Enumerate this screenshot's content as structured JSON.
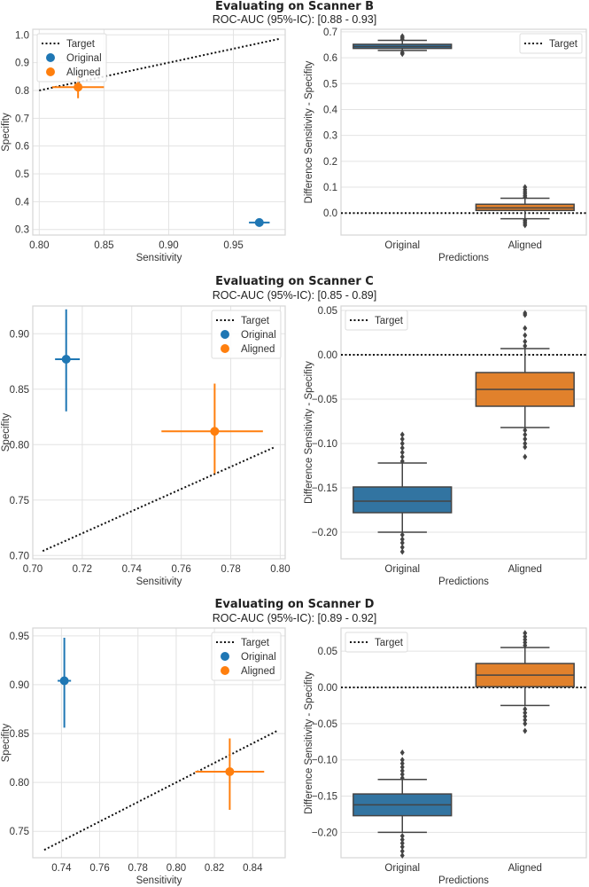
{
  "rows": [
    {
      "title": "Evaluating on Scanner B",
      "subtitle": "ROC-AUC (95%-IC): [0.88 - 0.93]"
    },
    {
      "title": "Evaluating on Scanner C",
      "subtitle": "ROC-AUC (95%-IC): [0.85 - 0.89]"
    },
    {
      "title": "Evaluating on Scanner D",
      "subtitle": "ROC-AUC (95%-IC): [0.89 - 0.92]"
    }
  ],
  "colors": {
    "original": "#1f77b4",
    "aligned": "#ff7f0e",
    "original_box": "#3274a1",
    "aligned_box": "#e1812c",
    "target": "#111111"
  },
  "chart_data": [
    {
      "type": "scatter",
      "scanner": "B",
      "xlabel": "Sensitivity",
      "ylabel": "Specifity",
      "xlim": [
        0.795,
        0.99
      ],
      "ylim": [
        0.28,
        1.02
      ],
      "xticks": [
        0.8,
        0.85,
        0.9,
        0.95
      ],
      "xtick_labels": [
        "0.80",
        "0.85",
        "0.90",
        "0.95"
      ],
      "yticks": [
        0.3,
        0.4,
        0.5,
        0.6,
        0.7,
        0.8,
        0.9,
        1.0
      ],
      "ytick_labels": [
        "0.3",
        "0.4",
        "0.5",
        "0.6",
        "0.7",
        "0.8",
        "0.9",
        "1.0"
      ],
      "legend": {
        "position": "top-left",
        "entries": [
          "Target",
          "Original",
          "Aligned"
        ]
      },
      "target": [
        [
          0.8,
          0.8
        ],
        [
          0.985,
          0.985
        ]
      ],
      "points": [
        {
          "name": "Original",
          "x": 0.97,
          "y": 0.325,
          "xerr": [
            0.962,
            0.978
          ],
          "yerr": [
            0.31,
            0.34
          ]
        },
        {
          "name": "Aligned",
          "x": 0.83,
          "y": 0.812,
          "xerr": [
            0.81,
            0.85
          ],
          "yerr": [
            0.772,
            0.85
          ]
        }
      ]
    },
    {
      "type": "box",
      "scanner": "B",
      "xlabel": "Predictions",
      "ylabel": "Difference Sensitivity - Specifity",
      "ylim": [
        -0.085,
        0.71
      ],
      "yticks": [
        0.0,
        0.1,
        0.2,
        0.3,
        0.4,
        0.5,
        0.6,
        0.7
      ],
      "ytick_labels": [
        "0.0",
        "0.1",
        "0.2",
        "0.3",
        "0.4",
        "0.5",
        "0.6",
        "0.7"
      ],
      "categories": [
        "Original",
        "Aligned"
      ],
      "target_y": 0.0,
      "legend": {
        "position": "top-right",
        "entries": [
          "Target"
        ]
      },
      "boxes": [
        {
          "name": "Original",
          "q1": 0.636,
          "median": 0.643,
          "q3": 0.652,
          "whislo": 0.628,
          "whishi": 0.667,
          "fliers": [
            0.62,
            0.615,
            0.672,
            0.678,
            0.683
          ]
        },
        {
          "name": "Aligned",
          "q1": 0.01,
          "median": 0.02,
          "q3": 0.034,
          "whislo": -0.022,
          "whishi": 0.057,
          "fliers": [
            0.062,
            0.068,
            0.075,
            0.082,
            0.09,
            0.1,
            -0.028,
            -0.034,
            -0.04,
            -0.047
          ]
        }
      ]
    },
    {
      "type": "scatter",
      "scanner": "C",
      "xlabel": "Sensitivity",
      "ylabel": "Specifity",
      "xlim": [
        0.7,
        0.802
      ],
      "ylim": [
        0.697,
        0.925
      ],
      "xticks": [
        0.7,
        0.72,
        0.74,
        0.76,
        0.78,
        0.8
      ],
      "xtick_labels": [
        "0.70",
        "0.72",
        "0.74",
        "0.76",
        "0.78",
        "0.80"
      ],
      "yticks": [
        0.7,
        0.75,
        0.8,
        0.85,
        0.9
      ],
      "ytick_labels": [
        "0.70",
        "0.75",
        "0.80",
        "0.85",
        "0.90"
      ],
      "legend": {
        "position": "top-right",
        "entries": [
          "Target",
          "Original",
          "Aligned"
        ]
      },
      "target": [
        [
          0.704,
          0.704
        ],
        [
          0.798,
          0.798
        ]
      ],
      "points": [
        {
          "name": "Original",
          "x": 0.7135,
          "y": 0.877,
          "xerr": [
            0.709,
            0.719
          ],
          "yerr": [
            0.83,
            0.922
          ]
        },
        {
          "name": "Aligned",
          "x": 0.7735,
          "y": 0.812,
          "xerr": [
            0.752,
            0.793
          ],
          "yerr": [
            0.774,
            0.855
          ]
        }
      ]
    },
    {
      "type": "box",
      "scanner": "C",
      "xlabel": "Predictions",
      "ylabel": "Difference Sensitivity - Specifity",
      "ylim": [
        -0.23,
        0.055
      ],
      "yticks": [
        0.05,
        0.0,
        -0.05,
        -0.1,
        -0.15,
        -0.2
      ],
      "ytick_labels": [
        "0.05",
        "0.00",
        "−0.05",
        "−0.10",
        "−0.15",
        "−0.20"
      ],
      "categories": [
        "Original",
        "Aligned"
      ],
      "target_y": 0.0,
      "legend": {
        "position": "top-left",
        "entries": [
          "Target"
        ]
      },
      "boxes": [
        {
          "name": "Original",
          "q1": -0.178,
          "median": -0.165,
          "q3": -0.149,
          "whislo": -0.2,
          "whishi": -0.122,
          "fliers": [
            -0.09,
            -0.095,
            -0.1,
            -0.105,
            -0.11,
            -0.115,
            -0.12,
            -0.203,
            -0.208,
            -0.212,
            -0.217,
            -0.222
          ]
        },
        {
          "name": "Aligned",
          "q1": -0.058,
          "median": -0.039,
          "q3": -0.02,
          "whislo": -0.082,
          "whishi": 0.007,
          "fliers": [
            0.01,
            0.015,
            0.022,
            0.03,
            0.045,
            0.047,
            -0.085,
            -0.09,
            -0.095,
            -0.1,
            -0.104,
            -0.115
          ]
        }
      ]
    },
    {
      "type": "scatter",
      "scanner": "D",
      "xlabel": "Sensitivity",
      "ylabel": "Specifity",
      "xlim": [
        0.725,
        0.857
      ],
      "ylim": [
        0.723,
        0.958
      ],
      "xticks": [
        0.74,
        0.76,
        0.78,
        0.8,
        0.82,
        0.84
      ],
      "xtick_labels": [
        "0.74",
        "0.76",
        "0.78",
        "0.80",
        "0.82",
        "0.84"
      ],
      "yticks": [
        0.75,
        0.8,
        0.85,
        0.9,
        0.95
      ],
      "ytick_labels": [
        "0.75",
        "0.80",
        "0.85",
        "0.90",
        "0.95"
      ],
      "legend": {
        "position": "top-right",
        "entries": [
          "Target",
          "Original",
          "Aligned"
        ]
      },
      "target": [
        [
          0.731,
          0.731
        ],
        [
          0.853,
          0.853
        ]
      ],
      "points": [
        {
          "name": "Original",
          "x": 0.7415,
          "y": 0.904,
          "xerr": [
            0.738,
            0.745
          ],
          "yerr": [
            0.856,
            0.948
          ]
        },
        {
          "name": "Aligned",
          "x": 0.828,
          "y": 0.811,
          "xerr": [
            0.81,
            0.846
          ],
          "yerr": [
            0.772,
            0.845
          ]
        }
      ]
    },
    {
      "type": "box",
      "scanner": "D",
      "xlabel": "Predictions",
      "ylabel": "Difference Sensitivity - Specifity",
      "ylim": [
        -0.235,
        0.082
      ],
      "yticks": [
        0.05,
        0.0,
        -0.05,
        -0.1,
        -0.15,
        -0.2
      ],
      "ytick_labels": [
        "0.05",
        "0.00",
        "−0.05",
        "−0.10",
        "−0.15",
        "−0.20"
      ],
      "categories": [
        "Original",
        "Aligned"
      ],
      "target_y": 0.0,
      "legend": {
        "position": "top-left",
        "entries": [
          "Target"
        ]
      },
      "boxes": [
        {
          "name": "Original",
          "q1": -0.177,
          "median": -0.162,
          "q3": -0.147,
          "whislo": -0.2,
          "whishi": -0.127,
          "fliers": [
            -0.09,
            -0.1,
            -0.105,
            -0.11,
            -0.115,
            -0.12,
            -0.125,
            -0.205,
            -0.21,
            -0.215,
            -0.22,
            -0.226,
            -0.232
          ]
        },
        {
          "name": "Aligned",
          "q1": 0.001,
          "median": 0.017,
          "q3": 0.033,
          "whislo": -0.025,
          "whishi": 0.055,
          "fliers": [
            0.058,
            0.062,
            0.066,
            0.07,
            0.075,
            -0.03,
            -0.035,
            -0.04,
            -0.045,
            -0.05,
            -0.06
          ]
        }
      ]
    }
  ]
}
